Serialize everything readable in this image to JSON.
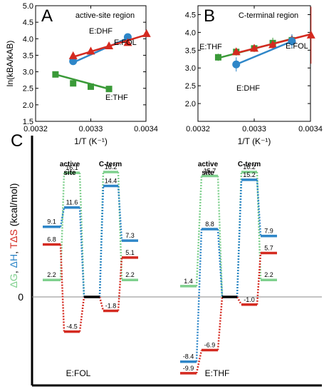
{
  "colors": {
    "blue": "#2e86c8",
    "red": "#d42a20",
    "green": "#3a9a38",
    "light_green": "#7fd08e",
    "black": "#000000",
    "gray": "#888888"
  },
  "chart_data": [
    {
      "panel": "A",
      "type": "scatter",
      "title": "active-site region",
      "xlabel": "1/T (K⁻¹)",
      "ylabel": "ln(kBA/kAB)",
      "xlim": [
        0.0032,
        0.0034
      ],
      "ylim": [
        1.5,
        5.0
      ],
      "x_ticks": [
        0.0032,
        0.0033,
        0.0034
      ],
      "x_tick_labels": [
        "0.0032",
        "0.0033",
        "0.0034"
      ],
      "y_ticks": [
        1.5,
        2.0,
        2.5,
        3.0,
        3.5,
        4.0,
        4.5,
        5.0
      ],
      "y_tick_labels": [
        "1.5",
        "2.0",
        "2.5",
        "3.0",
        "3.5",
        "4.0",
        "4.5",
        "5.0"
      ],
      "series": [
        {
          "name": "E:DHF",
          "color": "blue",
          "marker": "circle",
          "x": [
            0.003268,
            0.003367
          ],
          "y": [
            3.32,
            4.05
          ],
          "fit": [
            [
              0.003268,
              3.28
            ],
            [
              0.003367,
              4.02
            ]
          ]
        },
        {
          "name": "E:FOL",
          "color": "red",
          "marker": "triangle",
          "x": [
            0.003268,
            0.0033,
            0.003333,
            0.003367,
            0.003401
          ],
          "y": [
            3.48,
            3.62,
            3.78,
            3.88,
            4.15
          ],
          "fit": [
            [
              0.003268,
              3.45
            ],
            [
              0.003401,
              4.12
            ]
          ]
        },
        {
          "name": "E:THF",
          "color": "green",
          "marker": "square",
          "x": [
            0.003236,
            0.003268,
            0.0033,
            0.003333
          ],
          "y": [
            2.92,
            2.65,
            2.55,
            2.48
          ],
          "fit": [
            [
              0.003236,
              2.92
            ],
            [
              0.003333,
              2.48
            ]
          ]
        }
      ]
    },
    {
      "panel": "B",
      "type": "scatter",
      "title": "C-terminal region",
      "xlabel": "1/T (K⁻¹)",
      "ylabel": "",
      "xlim": [
        0.0032,
        0.0034
      ],
      "ylim": [
        1.5,
        4.75
      ],
      "x_ticks": [
        0.0032,
        0.0033,
        0.0034
      ],
      "x_tick_labels": [
        "0.0032",
        "0.0033",
        "0.0034"
      ],
      "y_ticks": [
        2.0,
        2.5,
        3.0,
        3.5,
        4.0,
        4.5
      ],
      "y_tick_labels": [
        "2.0",
        "2.5",
        "3.0",
        "3.5",
        "4.0",
        "4.5"
      ],
      "series": [
        {
          "name": "E:THF",
          "color": "green",
          "marker": "square",
          "x": [
            0.003236,
            0.003268,
            0.0033,
            0.003333,
            0.003367
          ],
          "y": [
            3.3,
            3.45,
            3.55,
            3.7,
            3.78
          ],
          "err": [
            0.1,
            0.1,
            0.1,
            0.15,
            0.15
          ],
          "fit": [
            [
              0.003236,
              3.28
            ],
            [
              0.003367,
              3.82
            ]
          ]
        },
        {
          "name": "E:FOL",
          "color": "red",
          "marker": "triangle",
          "x": [
            0.003268,
            0.0033,
            0.003333,
            0.003367,
            0.003401
          ],
          "y": [
            3.45,
            3.55,
            3.65,
            3.8,
            3.92
          ],
          "err": [
            0.05,
            0.1,
            0.1,
            0.1,
            0.8
          ],
          "fit": [
            [
              0.003268,
              3.42
            ],
            [
              0.003401,
              3.95
            ]
          ]
        },
        {
          "name": "E:DHF",
          "color": "blue",
          "marker": "circle",
          "x": [
            0.003268,
            0.003367
          ],
          "y": [
            3.1,
            3.75
          ],
          "err": [
            0.2,
            0.2
          ],
          "fit": [
            [
              0.003268,
              3.1
            ],
            [
              0.003367,
              3.75
            ]
          ]
        }
      ]
    },
    {
      "panel": "C",
      "type": "line",
      "ylabel_parts": [
        {
          "text": "ΔG",
          "color": "light_green"
        },
        {
          "text": ", ",
          "color": "black"
        },
        {
          "text": "ΔH",
          "color": "blue"
        },
        {
          "text": ", ",
          "color": "black"
        },
        {
          "text": "TΔS",
          "color": "red"
        },
        {
          "text": " (kcal/mol)",
          "color": "black"
        }
      ],
      "y_zero_label": "0",
      "group_labels": [
        "E:FOL",
        "E:THF"
      ],
      "section_labels": {
        "active_site": "active site",
        "c_term": "C-term"
      },
      "groups": [
        {
          "name": "E:FOL",
          "left": {
            "dG": 2.2,
            "dH": 9.1,
            "TdS": 6.8
          },
          "active_site": {
            "dG": 16.1,
            "dH": 11.6,
            "TdS": -4.5
          },
          "middle": 0,
          "c_term": {
            "dG": 16.2,
            "dH": 14.4,
            "TdS": -1.8
          },
          "right": {
            "dG": 2.2,
            "dH": 7.3,
            "TdS": 5.1
          }
        },
        {
          "name": "E:THF",
          "left": {
            "dG": 1.4,
            "dH": -8.4,
            "TdS": -9.9
          },
          "active_site": {
            "dG": 15.7,
            "dH": 8.8,
            "TdS": -6.9
          },
          "middle": 0,
          "c_term": {
            "dG": 16.2,
            "dH": 15.2,
            "TdS": -1.0
          },
          "right": {
            "dG": 2.2,
            "dH": 7.9,
            "TdS": 5.7
          }
        }
      ]
    }
  ],
  "panel_labels": [
    "A",
    "B",
    "C"
  ]
}
